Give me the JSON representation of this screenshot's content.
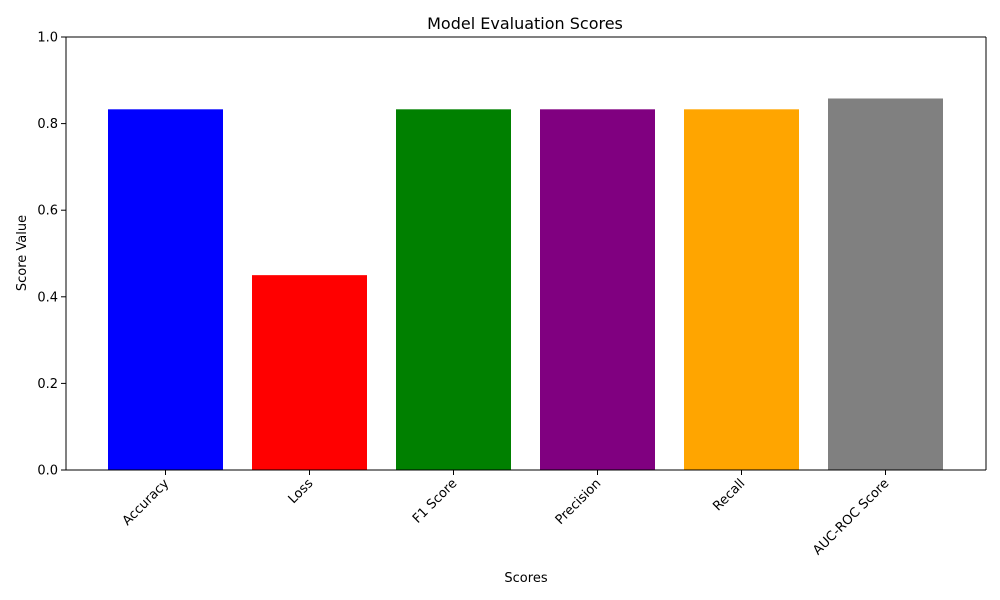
{
  "chart_data": {
    "type": "bar",
    "title": "Model Evaluation Scores",
    "xlabel": "Scores",
    "ylabel": "Score Value",
    "categories": [
      "Accuracy",
      "Loss",
      "F1 Score",
      "Precision",
      "Recall",
      "AUC-ROC Score"
    ],
    "values": [
      0.833,
      0.45,
      0.833,
      0.833,
      0.833,
      0.858
    ],
    "colors": [
      "#0000ff",
      "#ff0000",
      "#008000",
      "#800080",
      "#ffa500",
      "#808080"
    ],
    "ylim": [
      0,
      1.0
    ],
    "yticks": [
      "0.0",
      "0.2",
      "0.4",
      "0.6",
      "0.8",
      "1.0"
    ],
    "grid": false,
    "legend": "none"
  }
}
